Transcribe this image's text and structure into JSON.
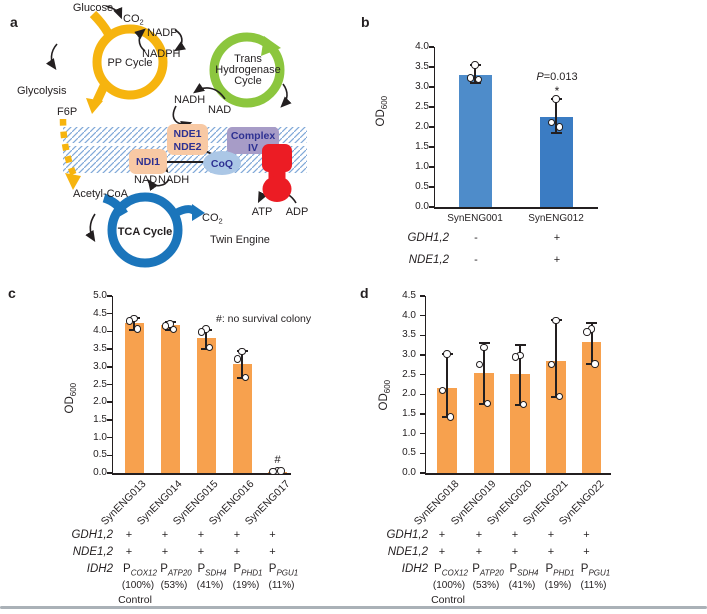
{
  "panels": {
    "a": {
      "label": "a"
    },
    "b": {
      "label": "b"
    },
    "c": {
      "label": "c"
    },
    "d": {
      "label": "d"
    }
  },
  "diagram": {
    "labels": {
      "glucose": "Glucose",
      "co2_main": "CO",
      "co2_sub": "2",
      "pp_cycle": "PP Cycle",
      "nadp": "NADP",
      "nadph": "NADPH",
      "trans1": "Trans",
      "trans2": "Hydrogenase",
      "trans3": "Cycle",
      "glycolysis": "Glycolysis",
      "f6p": "F6P",
      "nadh": "NADH",
      "nad": "NAD",
      "nde1": "NDE1",
      "nde2": "NDE2",
      "complex1": "Complex",
      "complex2": "IV",
      "ndi1": "NDI1",
      "coq": "CoQ",
      "acetyl_coa": "Acetyl-CoA",
      "tca_cycle": "TCA Cycle",
      "atp": "ATP",
      "adp": "ADP",
      "twin_engine": "Twin Engine"
    },
    "colors": {
      "pp_yellow": "#F6B40F",
      "trans_green": "#8CC63E",
      "tca_blue": "#1B75BB",
      "membrane_hatch": "#7FA8D8",
      "enzyme_box": "#F8C9A4",
      "enzyme_text": "#2E3192",
      "complex_iv": "#A79CC7",
      "coq": "#ABC7E6",
      "atp_synthase_red": "#EC1C24",
      "twin_engine_gray": "#595A5C"
    }
  },
  "chart_data": [
    {
      "panel": "b",
      "type": "bar",
      "ylabel": {
        "main": "OD",
        "sub": "600"
      },
      "ylim": [
        0,
        4.0
      ],
      "yticks": [
        "4.0",
        "3.5",
        "3.0",
        "2.5",
        "2.0",
        "1.5",
        "1.0",
        "0.5",
        "0.0"
      ],
      "categories": [
        "SynENG001",
        "SynENG012"
      ],
      "values": [
        3.31,
        2.24
      ],
      "bar_colors": [
        "#4E8CCA",
        "#3B7CC3"
      ],
      "errors": [
        [
          3.1,
          3.55
        ],
        [
          1.86,
          2.69
        ]
      ],
      "points": [
        [
          3.55,
          3.22,
          3.18
        ],
        [
          2.69,
          2.11,
          1.99
        ]
      ],
      "significance": {
        "bar_index": 1,
        "p_italic": "P",
        "p_rest": "=0.013",
        "star": "*"
      },
      "condition_rows": [
        {
          "label": "GDH1,2",
          "values": [
            "-",
            "+"
          ]
        },
        {
          "label": "NDE1,2",
          "values": [
            "-",
            "+"
          ]
        }
      ]
    },
    {
      "panel": "c",
      "type": "bar",
      "ylabel": {
        "main": "OD",
        "sub": "600"
      },
      "ylim": [
        0,
        5.0
      ],
      "yticks": [
        "5.0",
        "4.5",
        "4.0",
        "3.5",
        "3.0",
        "2.5",
        "2.0",
        "1.5",
        "1.0",
        "0.5",
        "0.0"
      ],
      "categories": [
        "SynENG013",
        "SynENG014",
        "SynENG015",
        "SynENG016",
        "SynENG017"
      ],
      "values": [
        4.25,
        4.18,
        3.82,
        3.07,
        0.04
      ],
      "bar_color": "#F7A14E",
      "errors": [
        [
          4.05,
          4.38
        ],
        [
          4.03,
          4.27
        ],
        [
          3.5,
          4.05
        ],
        [
          2.69,
          3.45
        ],
        null
      ],
      "points": [
        [
          4.36,
          4.29,
          4.06
        ],
        [
          4.2,
          4.15,
          4.04
        ],
        [
          4.06,
          3.98,
          3.54
        ],
        [
          3.42,
          3.21,
          2.69
        ],
        [
          0.05,
          0.04,
          0.05
        ]
      ],
      "note": "#: no survival colony",
      "hash_index": 4,
      "hash_symbol": "#",
      "condition_rows": [
        {
          "label": "GDH1,2",
          "values": [
            "+",
            "+",
            "+",
            "+",
            "+"
          ]
        },
        {
          "label": "NDE1,2",
          "values": [
            "+",
            "+",
            "+",
            "+",
            "+"
          ]
        }
      ],
      "promoter_row": {
        "label": "IDH2",
        "promoters": [
          {
            "base": "P",
            "sub": "COX12"
          },
          {
            "base": "P",
            "sub": "ATP20"
          },
          {
            "base": "P",
            "sub": "SDH4"
          },
          {
            "base": "P",
            "sub": "PHD1"
          },
          {
            "base": "P",
            "sub": "PGU1"
          }
        ]
      },
      "percentages": [
        "(100%)",
        "(53%)",
        "(41%)",
        "(19%)",
        "(11%)"
      ],
      "control_label": "Control"
    },
    {
      "panel": "d",
      "type": "bar",
      "ylabel": {
        "main": "OD",
        "sub": "600"
      },
      "ylim": [
        0,
        4.5
      ],
      "yticks": [
        "4.5",
        "4.0",
        "3.5",
        "3.0",
        "2.5",
        "2.0",
        "1.5",
        "1.0",
        "0.5",
        "0.0"
      ],
      "categories": [
        "SynENG018",
        "SynENG019",
        "SynENG020",
        "SynENG021",
        "SynENG022"
      ],
      "values": [
        2.16,
        2.55,
        2.52,
        2.85,
        3.32
      ],
      "bar_color": "#F7A14E",
      "errors": [
        [
          1.42,
          3.02
        ],
        [
          1.76,
          3.3
        ],
        [
          1.74,
          3.25
        ],
        [
          1.94,
          3.9
        ],
        [
          2.77,
          3.81
        ]
      ],
      "points": [
        [
          3.02,
          2.09,
          1.42
        ],
        [
          3.19,
          2.75,
          1.76
        ],
        [
          2.98,
          2.94,
          1.73
        ],
        [
          3.87,
          2.75,
          1.94
        ],
        [
          3.66,
          3.58,
          2.77
        ]
      ],
      "condition_rows": [
        {
          "label": "GDH1,2",
          "values": [
            "+",
            "+",
            "+",
            "+",
            "+"
          ]
        },
        {
          "label": "NDE1,2",
          "values": [
            "+",
            "+",
            "+",
            "+",
            "+"
          ]
        }
      ],
      "promoter_row": {
        "label": "IDH2",
        "promoters": [
          {
            "base": "P",
            "sub": "COX12"
          },
          {
            "base": "P",
            "sub": "ATP20"
          },
          {
            "base": "P",
            "sub": "SDH4"
          },
          {
            "base": "P",
            "sub": "PHD1"
          },
          {
            "base": "P",
            "sub": "PGU1"
          }
        ]
      },
      "percentages": [
        "(100%)",
        "(53%)",
        "(41%)",
        "(19%)",
        "(11%)"
      ],
      "control_label": "Control"
    }
  ]
}
